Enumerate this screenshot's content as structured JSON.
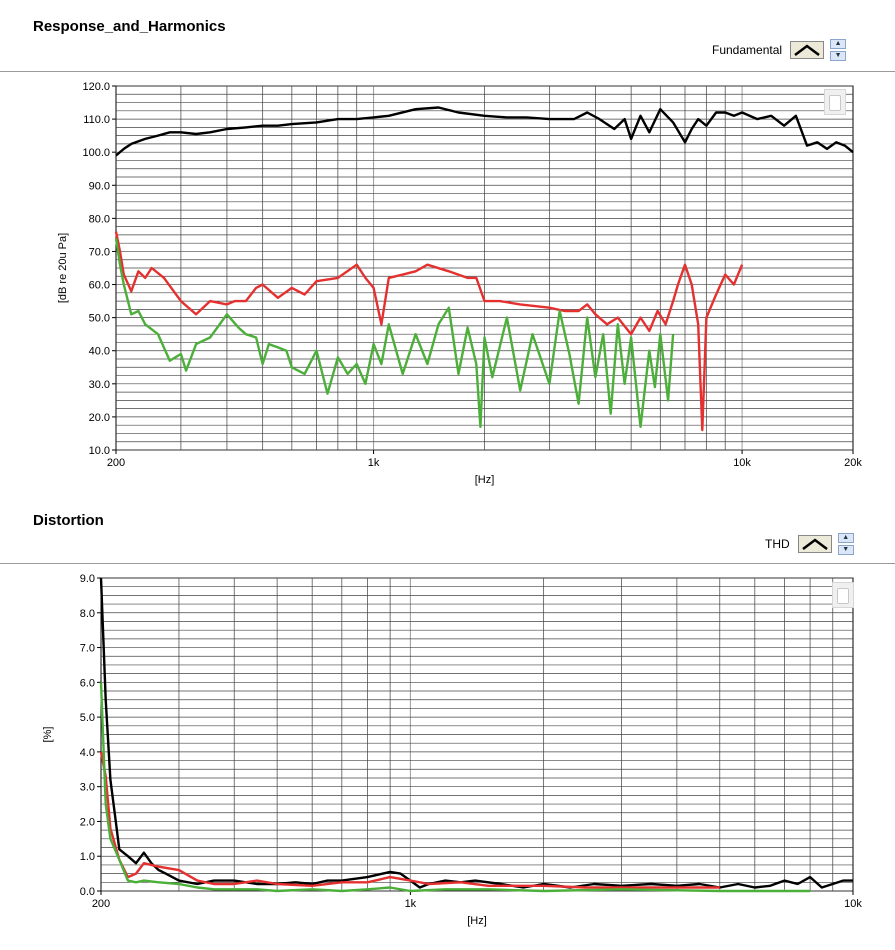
{
  "chart_data": [
    {
      "type": "line",
      "title": "Response_and_Harmonics",
      "xlabel": "[Hz]",
      "ylabel": "[dB re 20u Pa]",
      "x_scale": "log",
      "xlim": [
        200,
        20000
      ],
      "ylim": [
        10,
        120
      ],
      "yticks": [
        "120.0",
        "110.0",
        "100.0",
        "90.0",
        "80.0",
        "70.0",
        "60.0",
        "50.0",
        "40.0",
        "30.0",
        "20.0",
        "10.0"
      ],
      "xticks": [
        "200",
        "1k",
        "10k",
        "20k"
      ],
      "legend": {
        "selected_label": "Fundamental"
      },
      "grid": true,
      "series": [
        {
          "color": "#000000",
          "x": [
            200,
            210,
            220,
            240,
            260,
            280,
            300,
            330,
            360,
            400,
            450,
            500,
            550,
            600,
            700,
            800,
            900,
            1000,
            1100,
            1300,
            1500,
            1700,
            2000,
            2300,
            2600,
            3000,
            3300,
            3500,
            3800,
            4100,
            4500,
            4800,
            5000,
            5300,
            5600,
            6000,
            6500,
            7000,
            7300,
            7600,
            8000,
            8500,
            9000,
            9500,
            10000,
            11000,
            12000,
            13000,
            14000,
            15000,
            16000,
            17000,
            18000,
            19000,
            20000
          ],
          "y": [
            99,
            101,
            102.5,
            104,
            105,
            106,
            106,
            105.5,
            106,
            107,
            107.5,
            108,
            108,
            108.5,
            109,
            110,
            110,
            110.5,
            111,
            113,
            113.5,
            112,
            111,
            110.5,
            110.5,
            110,
            110,
            110,
            112,
            110,
            107,
            110,
            104,
            111,
            106,
            113,
            109,
            103,
            107,
            110,
            108,
            112,
            112,
            111,
            112,
            110,
            111,
            108,
            111,
            102,
            103,
            101,
            103,
            102,
            100
          ]
        },
        {
          "color": "#e53030",
          "x": [
            200,
            205,
            210,
            220,
            230,
            240,
            250,
            270,
            300,
            330,
            360,
            400,
            420,
            450,
            480,
            500,
            550,
            600,
            650,
            700,
            800,
            900,
            950,
            1000,
            1050,
            1100,
            1200,
            1300,
            1400,
            1600,
            1800,
            1900,
            2000,
            2200,
            2500,
            3000,
            3300,
            3600,
            3800,
            4000,
            4300,
            4600,
            5000,
            5300,
            5600,
            5900,
            6200,
            6500,
            6700,
            7000,
            7300,
            7600,
            7800,
            8000,
            8500,
            9000,
            9500,
            10000
          ],
          "y": [
            76,
            70,
            63,
            58,
            64,
            62,
            65,
            62,
            55,
            51,
            55,
            54,
            55,
            55,
            59,
            60,
            56,
            59,
            57,
            61,
            62,
            66,
            62,
            59,
            48,
            62,
            63,
            64,
            66,
            64,
            62,
            62,
            55,
            55,
            54,
            53,
            52,
            52,
            54,
            51,
            48,
            50,
            45,
            50,
            46,
            52,
            48,
            55,
            60,
            66,
            60,
            48,
            16,
            50,
            57,
            63,
            60,
            66
          ]
        },
        {
          "color": "#4caf3a",
          "x": [
            200,
            205,
            210,
            220,
            230,
            240,
            260,
            280,
            300,
            310,
            330,
            360,
            400,
            430,
            450,
            480,
            500,
            520,
            550,
            580,
            600,
            650,
            700,
            750,
            800,
            850,
            900,
            950,
            1000,
            1050,
            1100,
            1200,
            1300,
            1400,
            1500,
            1600,
            1700,
            1800,
            1900,
            1950,
            2000,
            2100,
            2300,
            2500,
            2700,
            3000,
            3200,
            3400,
            3600,
            3800,
            4000,
            4200,
            4400,
            4600,
            4800,
            5000,
            5300,
            5600,
            5800,
            6000,
            6300,
            6500
          ],
          "y": [
            74,
            66,
            60,
            51,
            52,
            48,
            45,
            37,
            39,
            34,
            42,
            44,
            51,
            47,
            45,
            44,
            36,
            42,
            41,
            40,
            35,
            33,
            40,
            27,
            38,
            33,
            36,
            30,
            42,
            36,
            48,
            33,
            45,
            36,
            48,
            53,
            33,
            47,
            36,
            17,
            44,
            32,
            50,
            28,
            45,
            30,
            52,
            39,
            24,
            50,
            32,
            45,
            21,
            48,
            30,
            44,
            17,
            40,
            29,
            45,
            25,
            45
          ]
        }
      ]
    },
    {
      "type": "line",
      "title": "Distortion",
      "xlabel": "[Hz]",
      "ylabel": "[%]",
      "x_scale": "log",
      "xlim": [
        200,
        10000
      ],
      "ylim": [
        0,
        9
      ],
      "yticks": [
        "9.0",
        "8.0",
        "7.0",
        "6.0",
        "5.0",
        "4.0",
        "3.0",
        "2.0",
        "1.0",
        "0.0"
      ],
      "xticks": [
        "200",
        "1k",
        "10k"
      ],
      "legend": {
        "selected_label": "THD"
      },
      "grid": true,
      "series": [
        {
          "color": "#000000",
          "x": [
            200,
            205,
            210,
            215,
            220,
            230,
            240,
            250,
            260,
            270,
            280,
            300,
            330,
            360,
            400,
            450,
            500,
            550,
            600,
            650,
            700,
            800,
            900,
            950,
            1000,
            1050,
            1100,
            1200,
            1300,
            1400,
            1600,
            1800,
            2000,
            2300,
            2600,
            3000,
            3500,
            4000,
            4500,
            5000,
            5500,
            6000,
            6500,
            7000,
            7500,
            8000,
            8500,
            9000,
            9500,
            10000
          ],
          "y": [
            9.0,
            5.5,
            3.2,
            2.2,
            1.2,
            1.0,
            0.8,
            1.1,
            0.8,
            0.6,
            0.5,
            0.3,
            0.2,
            0.3,
            0.3,
            0.2,
            0.2,
            0.25,
            0.2,
            0.3,
            0.3,
            0.4,
            0.55,
            0.5,
            0.3,
            0.1,
            0.2,
            0.3,
            0.25,
            0.3,
            0.2,
            0.1,
            0.2,
            0.1,
            0.2,
            0.15,
            0.2,
            0.15,
            0.2,
            0.1,
            0.2,
            0.1,
            0.15,
            0.3,
            0.2,
            0.4,
            0.1,
            0.2,
            0.3,
            0.3
          ]
        },
        {
          "color": "#e53030",
          "x": [
            200,
            205,
            210,
            220,
            230,
            240,
            250,
            270,
            300,
            330,
            360,
            400,
            450,
            500,
            600,
            700,
            800,
            900,
            1000,
            1100,
            1300,
            1500,
            2000,
            2500,
            3000,
            4000,
            5000
          ],
          "y": [
            4.0,
            3.3,
            1.8,
            0.9,
            0.4,
            0.5,
            0.8,
            0.7,
            0.6,
            0.3,
            0.2,
            0.2,
            0.3,
            0.2,
            0.15,
            0.25,
            0.25,
            0.4,
            0.3,
            0.2,
            0.25,
            0.15,
            0.15,
            0.1,
            0.1,
            0.1,
            0.1
          ]
        },
        {
          "color": "#4caf3a",
          "x": [
            200,
            205,
            210,
            215,
            220,
            230,
            240,
            250,
            270,
            300,
            330,
            360,
            400,
            450,
            500,
            600,
            700,
            800,
            900,
            1000,
            1200,
            1500,
            2000,
            3000,
            5000,
            7000,
            8000
          ],
          "y": [
            6.0,
            2.5,
            1.5,
            1.2,
            0.9,
            0.3,
            0.25,
            0.3,
            0.25,
            0.2,
            0.1,
            0.05,
            0.05,
            0.05,
            0.0,
            0.05,
            0.0,
            0.05,
            0.1,
            0.0,
            0.05,
            0.05,
            0.0,
            0.05,
            0.0,
            0.0,
            0.0
          ]
        }
      ]
    }
  ]
}
